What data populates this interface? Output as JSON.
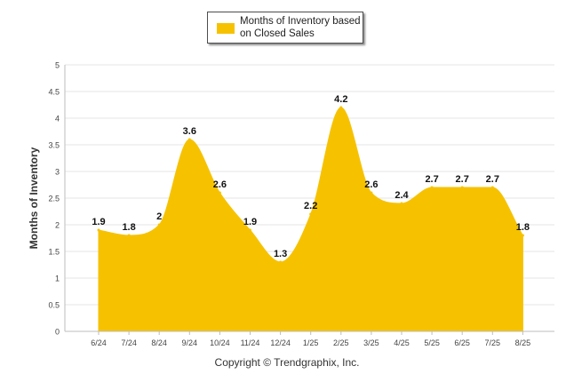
{
  "chart_data": {
    "type": "area",
    "categories": [
      "6/24",
      "7/24",
      "8/24",
      "9/24",
      "10/24",
      "11/24",
      "12/24",
      "1/25",
      "2/25",
      "3/25",
      "4/25",
      "5/25",
      "6/25",
      "7/25",
      "8/25"
    ],
    "series": [
      {
        "name": "Months of Inventory based on Closed Sales",
        "values": [
          1.9,
          1.8,
          2,
          3.6,
          2.6,
          1.9,
          1.3,
          2.2,
          4.2,
          2.6,
          2.4,
          2.7,
          2.7,
          2.7,
          1.8
        ],
        "labels": [
          "1.9",
          "1.8",
          "2",
          "3.6",
          "2.6",
          "1.9",
          "1.3",
          "2.2",
          "4.2",
          "2.6",
          "2.4",
          "2.7",
          "2.7",
          "2.7",
          "1.8"
        ],
        "color": "#f6c200"
      }
    ],
    "title": "",
    "xlabel": "",
    "ylabel": "Months of Inventory",
    "ylim": [
      0,
      5
    ],
    "yticks": [
      "0",
      "0.5",
      "1",
      "1.5",
      "2",
      "2.5",
      "3",
      "3.5",
      "4",
      "4.5",
      "5"
    ],
    "grid": true,
    "legend_position": "top-center"
  },
  "legend": {
    "label": "Months of Inventory based on Closed Sales",
    "color": "#f6c200"
  },
  "footer": {
    "copyright": "Copyright © Trendgraphix, Inc."
  }
}
